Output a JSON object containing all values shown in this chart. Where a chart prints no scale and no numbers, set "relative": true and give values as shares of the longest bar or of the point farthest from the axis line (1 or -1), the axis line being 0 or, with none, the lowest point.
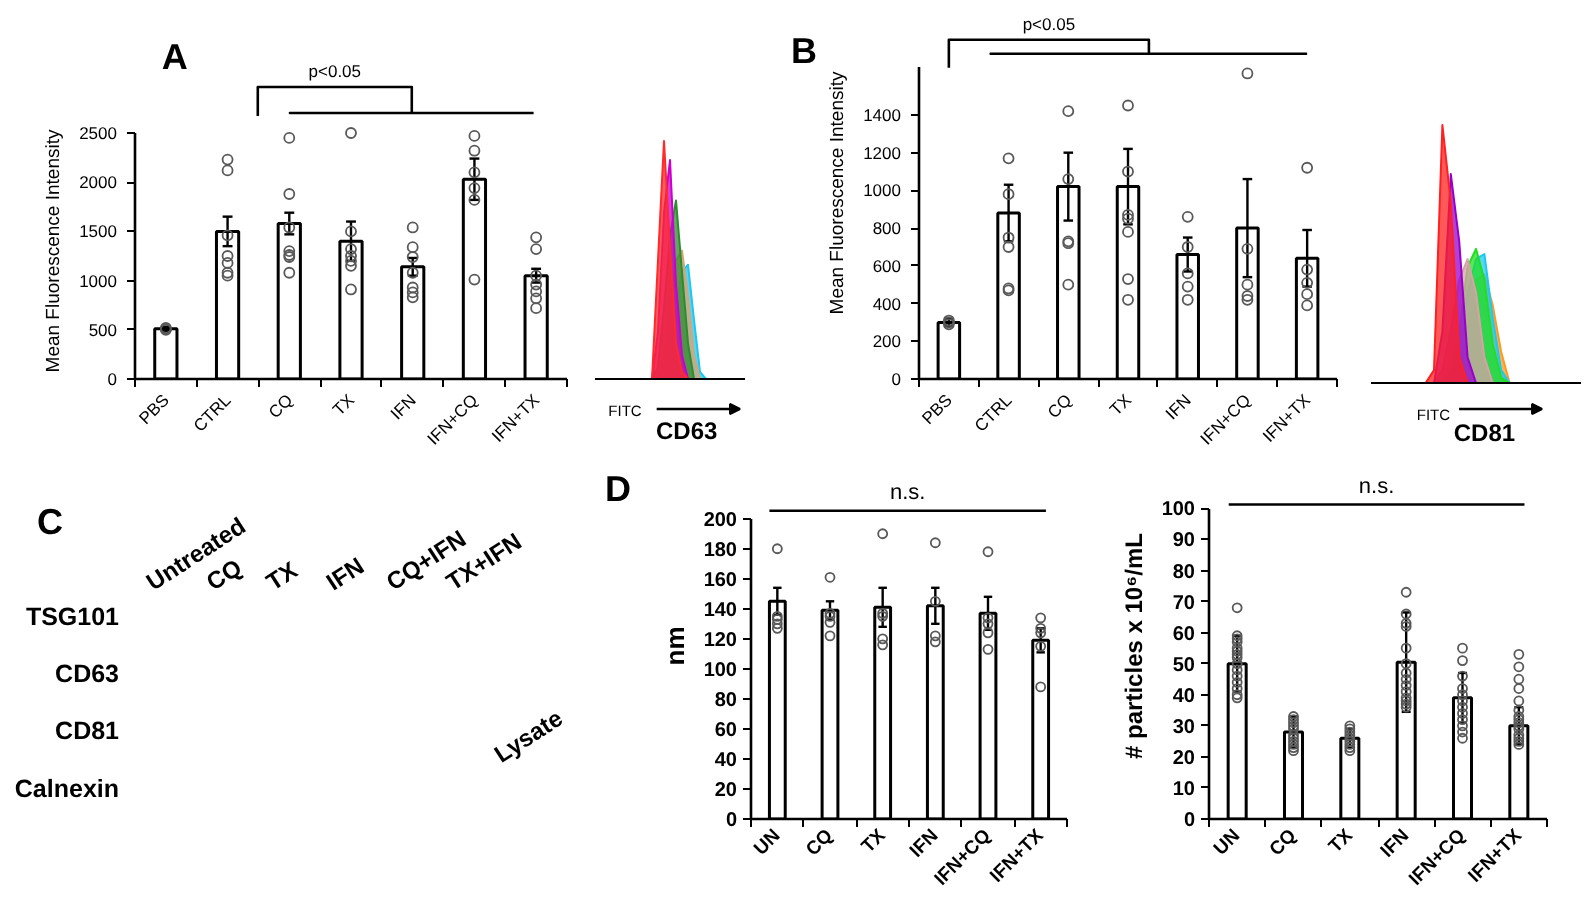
{
  "chart_data": [
    {
      "type": "bar",
      "title": "A",
      "ylabel": "Mean Fluorescence Intensity",
      "categories": [
        "PBS",
        "CTRL",
        "CQ",
        "TX",
        "IFN",
        "IFN+CQ",
        "IFN+TX"
      ],
      "ylim": [
        0,
        2500
      ],
      "yticks": [
        0,
        500,
        1000,
        1500,
        2000,
        2500
      ],
      "marker": "circle",
      "annotations": [
        "p<0.05"
      ],
      "series": [
        {
          "type": "bar",
          "color": "#ffffff",
          "values": [
            510,
            1500,
            1580,
            1400,
            1140,
            2030,
            1050
          ],
          "errors": [
            20,
            150,
            110,
            200,
            90,
            210,
            70
          ]
        },
        {
          "type": "scatter",
          "color": "#595959",
          "x": [
            "PBS",
            "PBS",
            "PBS",
            "CTRL",
            "CTRL",
            "CTRL",
            "CTRL",
            "CTRL",
            "CTRL",
            "CTRL",
            "CQ",
            "CQ",
            "CQ",
            "CQ",
            "CQ",
            "CQ",
            "CQ",
            "TX",
            "TX",
            "TX",
            "TX",
            "TX",
            "TX",
            "TX",
            "IFN",
            "IFN",
            "IFN",
            "IFN",
            "IFN",
            "IFN",
            "IFN",
            "IFN+CQ",
            "IFN+CQ",
            "IFN+CQ",
            "IFN+CQ",
            "IFN+CQ",
            "IFN+CQ",
            "IFN+TX",
            "IFN+TX",
            "IFN+TX",
            "IFN+TX",
            "IFN+TX",
            "IFN+TX",
            "IFN+TX"
          ],
          "values": [
            500,
            510,
            520,
            2230,
            2120,
            1460,
            1250,
            1180,
            1080,
            1050,
            2450,
            1880,
            1540,
            1300,
            1260,
            1240,
            1080,
            2500,
            1500,
            1320,
            1250,
            1200,
            1150,
            910,
            1540,
            1340,
            1240,
            1080,
            930,
            880,
            830,
            2470,
            2320,
            2100,
            1940,
            1820,
            1010,
            1440,
            1320,
            1050,
            960,
            890,
            820,
            720
          ]
        }
      ]
    },
    {
      "type": "area",
      "relative": true,
      "xlabel": "CD63",
      "annotations": [
        "FITC"
      ],
      "categories": [
        null,
        null,
        null,
        null,
        null,
        null,
        null,
        null,
        null,
        null,
        null,
        null,
        null,
        null,
        null,
        null,
        null,
        null,
        null,
        null,
        null,
        null,
        null,
        null,
        null
      ],
      "series": [
        {
          "color": "#1ec8f0",
          "values": [
            0,
            0,
            0,
            0,
            0,
            0,
            0,
            0,
            0,
            0,
            0,
            0,
            0.1,
            0.3,
            0.45,
            0.48,
            0.25,
            0.03,
            0,
            0,
            0,
            0,
            0,
            0,
            0
          ]
        },
        {
          "color": "#d2a679",
          "values": [
            0,
            0,
            0,
            0,
            0,
            0,
            0,
            0,
            0,
            0,
            0,
            0.1,
            0.3,
            0.5,
            0.54,
            0.35,
            0.1,
            0,
            0,
            0,
            0,
            0,
            0,
            0,
            0
          ]
        },
        {
          "color": "#2e8b2e",
          "values": [
            0,
            0,
            0,
            0,
            0,
            0,
            0,
            0,
            0,
            0,
            0.05,
            0.3,
            0.6,
            0.75,
            0.45,
            0.15,
            0,
            0,
            0,
            0,
            0,
            0,
            0,
            0,
            0
          ]
        },
        {
          "color": "#cc00cc",
          "values": [
            0,
            0,
            0,
            0,
            0,
            0,
            0,
            0,
            0,
            0,
            0.2,
            0.7,
            0.92,
            0.4,
            0.1,
            0,
            0,
            0,
            0,
            0,
            0,
            0,
            0,
            0,
            0
          ]
        },
        {
          "color": "#ff2a2a",
          "values": [
            0,
            0,
            0,
            0,
            0,
            0,
            0,
            0,
            0,
            0,
            0.5,
            1,
            0.55,
            0.15,
            0.03,
            0,
            0,
            0,
            0,
            0,
            0,
            0,
            0,
            0,
            0
          ]
        }
      ]
    },
    {
      "type": "bar",
      "title": "B",
      "ylabel": "Mean Fluorescence Intensity",
      "categories": [
        "PBS",
        "CTRL",
        "CQ",
        "TX",
        "IFN",
        "IFN+CQ",
        "IFN+TX"
      ],
      "ylim": [
        0,
        1650
      ],
      "yticks": [
        0,
        200,
        400,
        600,
        800,
        1000,
        1200,
        1400
      ],
      "marker": "circle",
      "annotations": [
        "p<0.05"
      ],
      "series": [
        {
          "type": "bar",
          "color": "#ffffff",
          "values": [
            300,
            880,
            1020,
            1020,
            660,
            800,
            640
          ],
          "errors": [
            20,
            150,
            180,
            200,
            90,
            260,
            150
          ]
        },
        {
          "type": "scatter",
          "color": "#595959",
          "x": [
            "PBS",
            "PBS",
            "PBS",
            "CTRL",
            "CTRL",
            "CTRL",
            "CTRL",
            "CTRL",
            "CTRL",
            "CQ",
            "CQ",
            "CQ",
            "CQ",
            "CQ",
            "TX",
            "TX",
            "TX",
            "TX",
            "TX",
            "TX",
            "TX",
            "IFN",
            "IFN",
            "IFN",
            "IFN",
            "IFN",
            "IFN+CQ",
            "IFN+CQ",
            "IFN+CQ",
            "IFN+CQ",
            "IFN+CQ",
            "IFN+TX",
            "IFN+TX",
            "IFN+TX",
            "IFN+TX",
            "IFN+TX"
          ],
          "values": [
            290,
            300,
            310,
            1170,
            980,
            750,
            700,
            480,
            470,
            1420,
            1060,
            730,
            720,
            500,
            1450,
            1100,
            870,
            850,
            780,
            530,
            420,
            860,
            700,
            560,
            490,
            420,
            1620,
            690,
            500,
            440,
            420,
            1120,
            580,
            510,
            450,
            390
          ]
        }
      ]
    },
    {
      "type": "area",
      "relative": true,
      "xlabel": "CD81",
      "annotations": [
        "FITC"
      ],
      "categories": [
        null,
        null,
        null,
        null,
        null,
        null,
        null,
        null,
        null,
        null,
        null,
        null,
        null,
        null,
        null,
        null,
        null,
        null,
        null,
        null,
        null,
        null,
        null,
        null,
        null
      ],
      "series": [
        {
          "color": "#ff9a1f",
          "values": [
            0,
            0,
            0,
            0,
            0,
            0,
            0,
            0,
            0,
            0,
            0.05,
            0.2,
            0.4,
            0.42,
            0.3,
            0.12,
            0,
            0,
            0,
            0,
            0,
            0,
            0,
            0,
            0
          ]
        },
        {
          "color": "#1ec8f0",
          "values": [
            0,
            0,
            0,
            0,
            0,
            0,
            0,
            0,
            0,
            0,
            0.1,
            0.35,
            0.48,
            0.5,
            0.25,
            0.05,
            0,
            0,
            0,
            0,
            0,
            0,
            0,
            0,
            0
          ]
        },
        {
          "color": "#22dd22",
          "values": [
            0,
            0,
            0,
            0,
            0,
            0,
            0,
            0,
            0,
            0.05,
            0.2,
            0.45,
            0.52,
            0.4,
            0.15,
            0.02,
            0,
            0,
            0,
            0,
            0,
            0,
            0,
            0,
            0
          ]
        },
        {
          "color": "#d9a0a8",
          "values": [
            0,
            0,
            0,
            0,
            0,
            0,
            0,
            0,
            0.05,
            0.2,
            0.4,
            0.48,
            0.35,
            0.1,
            0,
            0,
            0,
            0,
            0,
            0,
            0,
            0,
            0,
            0,
            0
          ]
        },
        {
          "color": "#9900cc",
          "values": [
            0,
            0,
            0,
            0,
            0,
            0,
            0,
            0,
            0.2,
            0.81,
            0.55,
            0.1,
            0,
            0,
            0,
            0,
            0,
            0,
            0,
            0,
            0,
            0,
            0,
            0,
            0
          ]
        },
        {
          "color": "#ff2020",
          "values": [
            0,
            0,
            0,
            0,
            0,
            0,
            0,
            0.05,
            1,
            0.7,
            0.1,
            0,
            0,
            0,
            0,
            0,
            0,
            0,
            0,
            0,
            0,
            0,
            0,
            0,
            0
          ]
        }
      ]
    },
    {
      "type": "other",
      "title": "C",
      "categories": [
        "Untreated",
        "CQ",
        "TX",
        "IFN",
        "CQ+IFN",
        "TX+IFN",
        "Lysate"
      ],
      "y_categories": [
        "TSG101",
        "CD63",
        "CD81",
        "Calnexin"
      ]
    },
    {
      "type": "bar",
      "title": "D",
      "ylabel": "nm",
      "categories": [
        "UN",
        "CQ",
        "TX",
        "IFN",
        "IFN+CQ",
        "IFN+TX"
      ],
      "ylim": [
        0,
        200
      ],
      "yticks": [
        0,
        20,
        40,
        60,
        80,
        100,
        120,
        140,
        160,
        180,
        200
      ],
      "marker": "circle",
      "annotations": [
        "n.s."
      ],
      "series": [
        {
          "type": "bar",
          "color": "#ffffff",
          "values": [
            145,
            139,
            141,
            142,
            137,
            119
          ],
          "errors": [
            9,
            6,
            13,
            12,
            11,
            8
          ]
        },
        {
          "type": "scatter",
          "color": "#595959",
          "x": [
            "UN",
            "UN",
            "UN",
            "UN",
            "UN",
            "CQ",
            "CQ",
            "CQ",
            "CQ",
            "CQ",
            "TX",
            "TX",
            "TX",
            "TX",
            "TX",
            "IFN",
            "IFN",
            "IFN",
            "IFN",
            "IFN+CQ",
            "IFN+CQ",
            "IFN+CQ",
            "IFN+CQ",
            "IFN+CQ",
            "IFN+TX",
            "IFN+TX",
            "IFN+TX",
            "IFN+TX",
            "IFN+TX"
          ],
          "values": [
            180,
            135,
            133,
            130,
            127,
            161,
            137,
            135,
            131,
            122,
            190,
            137,
            135,
            120,
            116,
            184,
            145,
            122,
            118,
            178,
            134,
            130,
            124,
            113,
            134,
            127,
            124,
            115,
            88
          ]
        }
      ]
    },
    {
      "type": "bar",
      "ylabel": "# particles x 10⁶/mL",
      "categories": [
        "UN",
        "CQ",
        "TX",
        "IFN",
        "IFN+CQ",
        "IFN+TX"
      ],
      "ylim": [
        0,
        100
      ],
      "yticks": [
        0,
        10,
        20,
        30,
        40,
        50,
        60,
        70,
        80,
        90,
        100
      ],
      "marker": "circle",
      "annotations": [
        "n.s."
      ],
      "series": [
        {
          "type": "bar",
          "color": "#ffffff",
          "values": [
            50,
            28,
            26,
            50.5,
            39,
            30
          ],
          "errors": [
            9,
            5,
            3,
            16,
            8,
            6
          ]
        },
        {
          "type": "scatter",
          "color": "#595959",
          "x": [
            "UN",
            "UN",
            "UN",
            "UN",
            "UN",
            "UN",
            "UN",
            "UN",
            "UN",
            "UN",
            "UN",
            "UN",
            "UN",
            "UN",
            "UN",
            "CQ",
            "CQ",
            "CQ",
            "CQ",
            "CQ",
            "CQ",
            "CQ",
            "CQ",
            "CQ",
            "CQ",
            "CQ",
            "TX",
            "TX",
            "TX",
            "TX",
            "TX",
            "TX",
            "TX",
            "TX",
            "TX",
            "IFN",
            "IFN",
            "IFN",
            "IFN",
            "IFN",
            "IFN",
            "IFN",
            "IFN",
            "IFN",
            "IFN",
            "IFN",
            "IFN",
            "IFN",
            "IFN",
            "IFN+CQ",
            "IFN+CQ",
            "IFN+CQ",
            "IFN+CQ",
            "IFN+CQ",
            "IFN+CQ",
            "IFN+CQ",
            "IFN+CQ",
            "IFN+CQ",
            "IFN+CQ",
            "IFN+CQ",
            "IFN+CQ",
            "IFN+TX",
            "IFN+TX",
            "IFN+TX",
            "IFN+TX",
            "IFN+TX",
            "IFN+TX",
            "IFN+TX",
            "IFN+TX",
            "IFN+TX",
            "IFN+TX",
            "IFN+TX",
            "IFN+TX",
            "IFN+TX",
            "IFN+TX",
            "IFN+TX"
          ],
          "values": [
            68,
            59,
            58,
            57,
            55,
            54,
            53,
            52,
            50,
            48,
            46,
            44,
            42,
            40,
            39,
            33,
            32,
            31,
            30,
            29,
            27,
            26,
            25,
            24,
            23,
            22,
            30,
            29,
            28,
            27,
            26,
            25,
            24,
            23,
            22,
            73,
            66,
            63,
            62,
            55,
            50,
            47,
            45,
            43,
            41,
            39,
            38,
            37,
            36,
            55,
            51,
            46,
            42,
            40,
            38,
            36,
            34,
            32,
            30,
            28,
            26,
            53,
            49,
            45,
            42,
            38,
            35,
            33,
            32,
            31,
            30,
            29,
            27,
            26,
            25,
            24
          ]
        }
      ]
    }
  ]
}
